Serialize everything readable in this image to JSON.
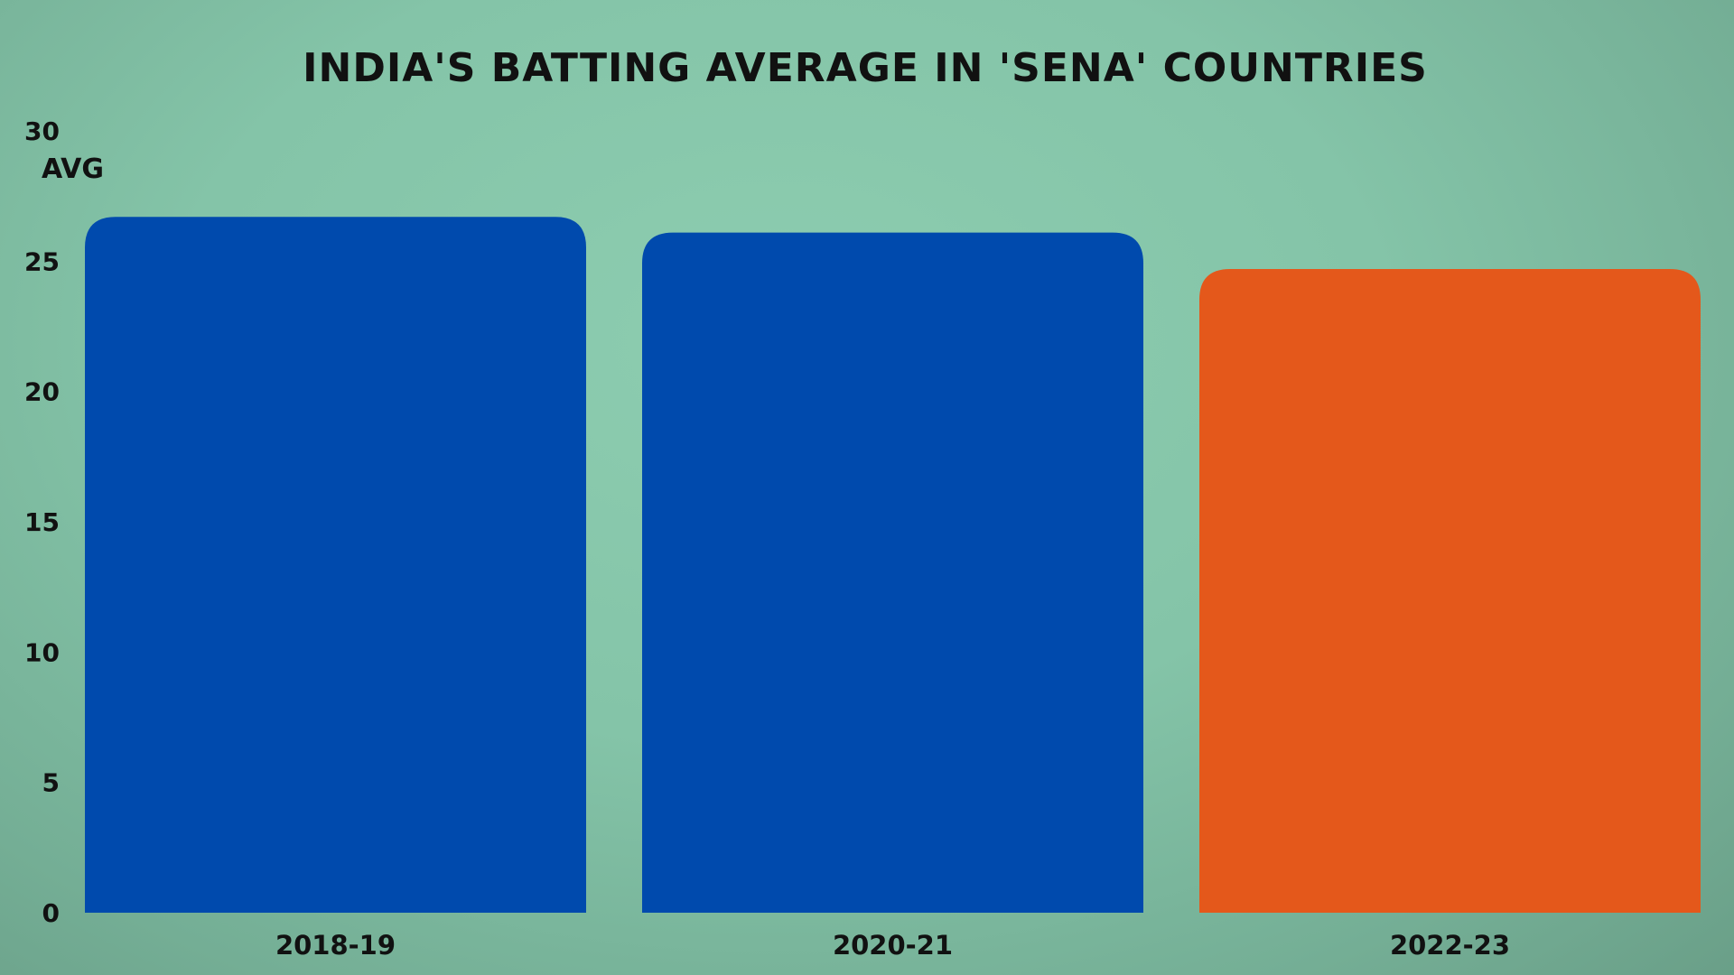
{
  "chart_data": {
    "type": "bar",
    "title": "INDIA'S BATTING AVERAGE IN 'SENA' COUNTRIES",
    "ylabel": "AVG",
    "xlabel": "",
    "categories": [
      "2018-19",
      "2020-21",
      "2022-23"
    ],
    "values": [
      26.7,
      26.1,
      24.7
    ],
    "colors": [
      "#004aad",
      "#004aad",
      "#e4581b"
    ],
    "ylim": [
      0,
      30
    ],
    "yticks": [
      0,
      5,
      10,
      15,
      20,
      25,
      30
    ],
    "grid": false,
    "legend": "none",
    "background_color": "#85c7ab",
    "text_color": "#111111"
  }
}
